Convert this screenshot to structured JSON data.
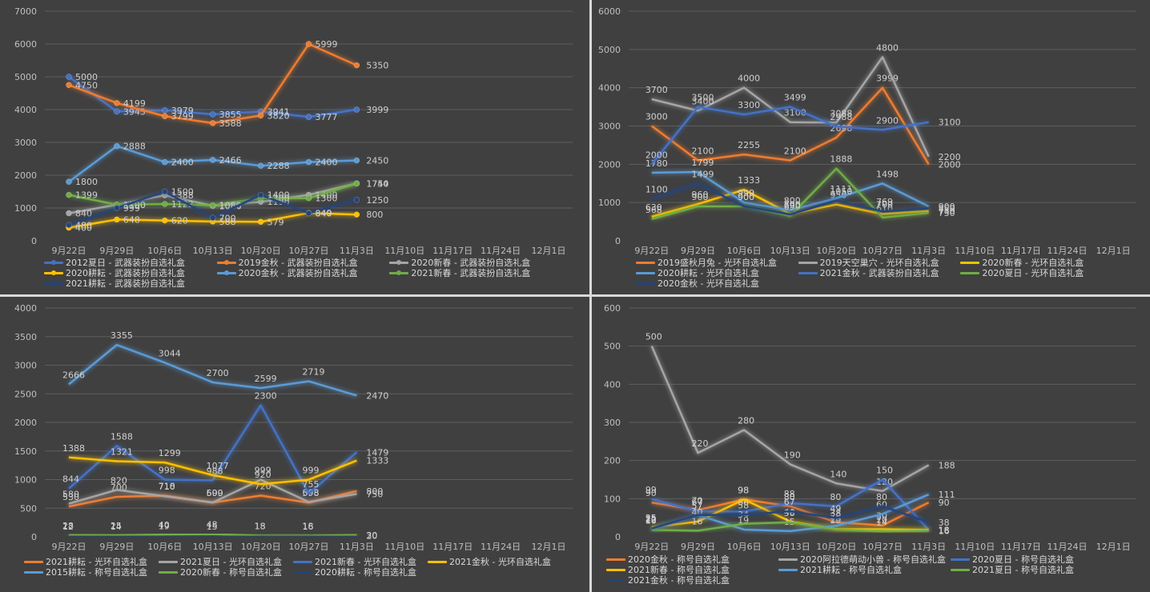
{
  "chart_data": [
    {
      "type": "line",
      "title": "",
      "xlabel": "",
      "ylabel": "",
      "ylim": [
        0,
        7000
      ],
      "yticks": [
        0,
        1000,
        2000,
        3000,
        4000,
        5000,
        6000,
        7000
      ],
      "grid": true,
      "legend_position": "bottom",
      "markers": true,
      "categories": [
        "9月22日",
        "9月29日",
        "10月6日",
        "10月13日",
        "10月20日",
        "10月27日",
        "11月3日",
        "11月10日",
        "11月17日",
        "11月24日",
        "12月1日"
      ],
      "series": [
        {
          "name": "2012夏日 - 武器装扮自选礼盒",
          "color": "#4472c4",
          "values": [
            5000,
            3945,
            3979,
            3855,
            3941,
            3777,
            3999
          ]
        },
        {
          "name": "2019金秋 - 武器装扮自选礼盒",
          "color": "#ed7d31",
          "values": [
            4750,
            4199,
            3799,
            3588,
            3820,
            5999,
            5350
          ]
        },
        {
          "name": "2020新春 - 武器装扮自选礼盒",
          "color": "#a5a5a5",
          "values": [
            840,
            1100,
            1388,
            1066,
            1190,
            1400,
            1750
          ]
        },
        {
          "name": "2020耕耘 - 武器装扮自选礼盒",
          "color": "#ffc000",
          "values": [
            400,
            648,
            620,
            588,
            579,
            849,
            800
          ]
        },
        {
          "name": "2020金秋 - 武器装扮自选礼盒",
          "color": "#5b9bd5",
          "values": [
            1800,
            2888,
            2400,
            2466,
            2288,
            2400,
            2450
          ]
        },
        {
          "name": "2021新春 - 武器装扮自选礼盒",
          "color": "#70ad47",
          "values": [
            1399,
            1100,
            1122,
            1080,
            1300,
            1300,
            1744
          ]
        },
        {
          "name": "2021耕耘 - 武器装扮自选礼盒",
          "color": "#264478",
          "values": [
            480,
            999,
            1500,
            700,
            1400,
            840,
            1250
          ]
        }
      ]
    },
    {
      "type": "line",
      "title": "",
      "xlabel": "",
      "ylabel": "",
      "ylim": [
        0,
        6000
      ],
      "yticks": [
        0,
        1000,
        2000,
        3000,
        4000,
        5000,
        6000
      ],
      "grid": true,
      "legend_position": "bottom",
      "markers": false,
      "categories": [
        "9月22日",
        "9月29日",
        "10月6日",
        "10月13日",
        "10月20日",
        "10月27日",
        "11月3日",
        "11月10日",
        "11月17日",
        "11月24日",
        "12月1日"
      ],
      "series": [
        {
          "name": "2019盛秋月兔 - 光环自选礼盒",
          "color": "#ed7d31",
          "values": [
            3000,
            2100,
            2255,
            2100,
            2698,
            3999,
            2000
          ]
        },
        {
          "name": "2019天空巢穴 - 光环自选礼盒",
          "color": "#a5a5a5",
          "values": [
            3700,
            3400,
            4000,
            3100,
            3088,
            4800,
            2200
          ]
        },
        {
          "name": "2020新春 - 光环自选礼盒",
          "color": "#ffc000",
          "values": [
            630,
            960,
            1333,
            700,
            950,
            700,
            780
          ]
        },
        {
          "name": "2020耕耘 - 光环自选礼盒",
          "color": "#5b9bd5",
          "values": [
            1780,
            1799,
            999,
            800,
            1111,
            1498,
            900
          ]
        },
        {
          "name": "2021金秋 - 武器装扮自选礼盒",
          "color": "#4472c4",
          "values": [
            2000,
            3500,
            3300,
            3499,
            2988,
            2900,
            3100
          ]
        },
        {
          "name": "2020夏日 - 光环自选礼盒",
          "color": "#70ad47",
          "values": [
            568,
            900,
            900,
            650,
            1888,
            610,
            730
          ]
        },
        {
          "name": "2020金秋 - 光环自选礼盒",
          "color": "#264478",
          "values": [
            1100,
            1499,
            900,
            690,
            1050,
            769,
            850
          ]
        }
      ]
    },
    {
      "type": "line",
      "title": "",
      "xlabel": "",
      "ylabel": "",
      "ylim": [
        0,
        4000
      ],
      "yticks": [
        0,
        500,
        1000,
        1500,
        2000,
        2500,
        3000,
        3500,
        4000
      ],
      "grid": true,
      "legend_position": "bottom",
      "markers": false,
      "categories": [
        "9月22日",
        "9月29日",
        "10月6日",
        "10月13日",
        "10月20日",
        "10月27日",
        "11月3日",
        "11月10日",
        "11月17日",
        "11月24日",
        "12月1日"
      ],
      "series": [
        {
          "name": "2021耕耘 - 光环自选礼盒",
          "color": "#ed7d31",
          "values": [
            530,
            700,
            718,
            600,
            720,
            598,
            800
          ]
        },
        {
          "name": "2021夏日 - 光环自选礼盒",
          "color": "#a5a5a5",
          "values": [
            580,
            820,
            710,
            599,
            999,
            608,
            750
          ]
        },
        {
          "name": "2021新春 - 光环自选礼盒",
          "color": "#4472c4",
          "values": [
            844,
            1588,
            998,
            988,
            2300,
            755,
            1479
          ]
        },
        {
          "name": "2021金秋 - 光环自选礼盒",
          "color": "#ffc000",
          "values": [
            1388,
            1321,
            1299,
            1077,
            920,
            999,
            1333
          ]
        },
        {
          "name": "2015耕耘 - 称号自选礼盒",
          "color": "#5b9bd5",
          "values": [
            2666,
            3355,
            3044,
            2700,
            2599,
            2719,
            2470
          ]
        },
        {
          "name": "2020新春 - 称号自选礼盒",
          "color": "#70ad47",
          "values": [
            28,
            25,
            40,
            48,
            18,
            18,
            30
          ]
        },
        {
          "name": "2020耕耘 - 称号自选礼盒",
          "color": "#264478",
          "values": [
            12,
            14,
            19,
            15,
            18,
            16,
            20
          ]
        }
      ]
    },
    {
      "type": "line",
      "title": "",
      "xlabel": "",
      "ylabel": "",
      "ylim": [
        0,
        600
      ],
      "yticks": [
        0,
        100,
        200,
        300,
        400,
        500,
        600
      ],
      "grid": true,
      "legend_position": "bottom",
      "markers": false,
      "categories": [
        "9月22日",
        "9月29日",
        "10月6日",
        "10月13日",
        "10月20日",
        "10月27日",
        "11月3日",
        "11月10日",
        "11月17日",
        "11月24日",
        "12月1日"
      ],
      "series": [
        {
          "name": "2020金秋 - 称号自选礼盒",
          "color": "#ed7d31",
          "values": [
            90,
            70,
            98,
            80,
            38,
            30,
            90
          ]
        },
        {
          "name": "2020阿拉德萌动小兽 - 称号自选礼盒",
          "color": "#a5a5a5",
          "values": [
            500,
            220,
            280,
            190,
            140,
            120,
            188
          ]
        },
        {
          "name": "2020夏日 - 称号自选礼盒",
          "color": "#4472c4",
          "values": [
            99,
            67,
            66,
            88,
            80,
            150,
            18
          ]
        },
        {
          "name": "2021新春 - 称号自选礼盒",
          "color": "#ffc000",
          "values": [
            25,
            40,
            98,
            40,
            20,
            20,
            18
          ]
        },
        {
          "name": "2021耕耘 - 称号自选礼盒",
          "color": "#5b9bd5",
          "values": [
            20,
            57,
            19,
            15,
            29,
            60,
            111
          ]
        },
        {
          "name": "2021夏日 - 称号自选礼盒",
          "color": "#70ad47",
          "values": [
            18,
            16,
            34,
            38,
            19,
            14,
            16
          ]
        },
        {
          "name": "2021金秋 - 称号自选礼盒",
          "color": "#264478",
          "values": [
            22,
            57,
            58,
            67,
            49,
            80,
            38
          ]
        }
      ]
    }
  ]
}
